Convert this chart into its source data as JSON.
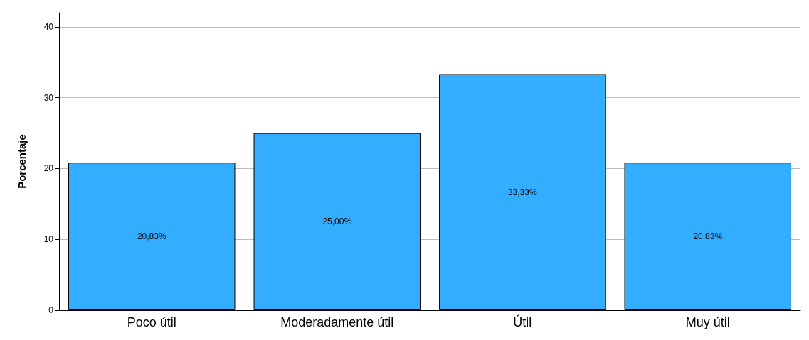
{
  "chart_data": {
    "type": "bar",
    "ylabel": "Porcentaje",
    "categories": [
      "Poco útil",
      "Moderadamente útil",
      "Útil",
      "Muy útil"
    ],
    "values": [
      20.83,
      25.0,
      33.33,
      20.83
    ],
    "value_labels": [
      "20,83%",
      "25,00%",
      "33,33%",
      "20,83%"
    ],
    "color": "#33adff",
    "ylim": [
      0,
      42
    ],
    "yticks": [
      0,
      10,
      20,
      30,
      40
    ],
    "grid": "y"
  }
}
